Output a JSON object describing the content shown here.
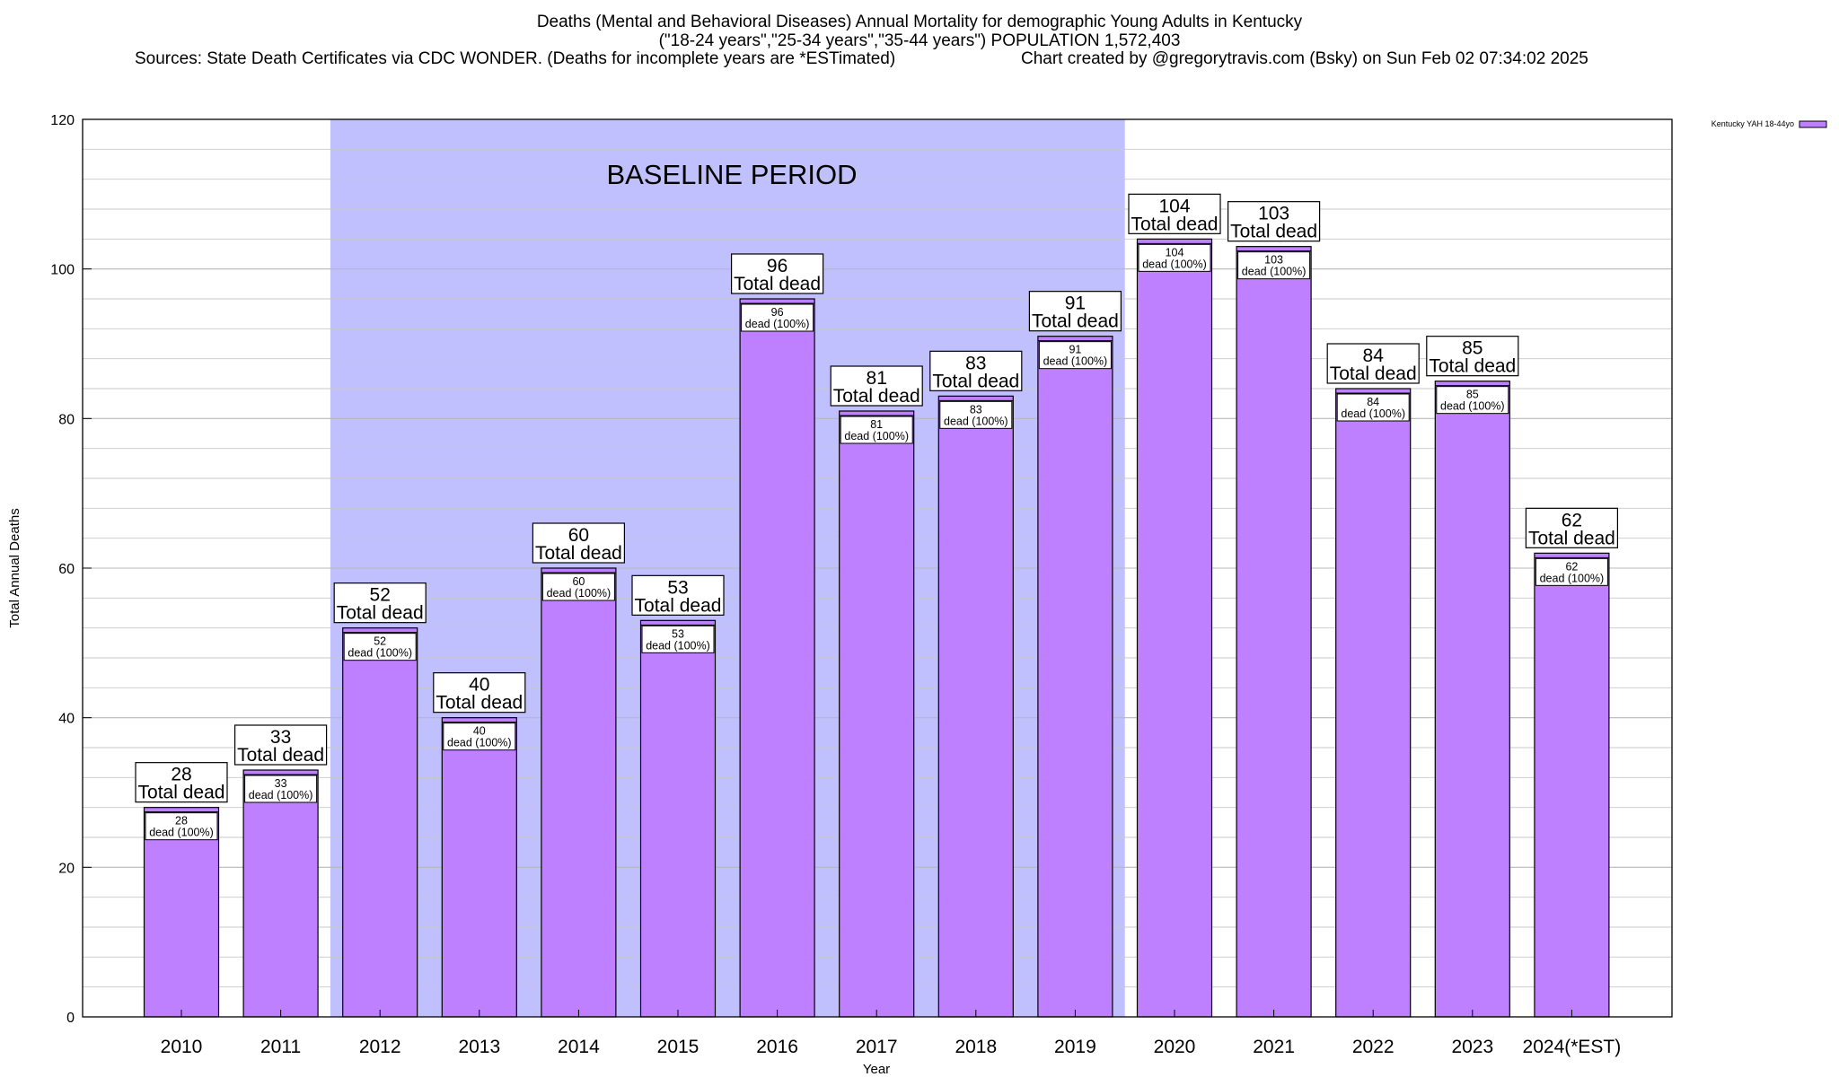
{
  "header": {
    "line1": "Deaths (Mental and Behavioral Diseases) Annual Mortality for demographic Young Adults in Kentucky",
    "line2": "(\"18-24 years\",\"25-34 years\",\"35-44 years\") POPULATION 1,572,403",
    "line3_left": "Sources: State Death Certificates via CDC WONDER. (Deaths for incomplete years are *ESTimated)",
    "line3_right": "Chart created by @gregorytravis.com (Bsky) on Sun Feb 02 07:34:02 2025"
  },
  "chart_data": {
    "type": "bar",
    "xlabel": "Year",
    "ylabel": "Total Annual Deaths",
    "ylim": [
      0,
      120
    ],
    "yticks": [
      0,
      20,
      40,
      60,
      80,
      100,
      120
    ],
    "grid": true,
    "categories": [
      "2010",
      "2011",
      "2012",
      "2013",
      "2014",
      "2015",
      "2016",
      "2017",
      "2018",
      "2019",
      "2020",
      "2021",
      "2022",
      "2023",
      "2024(*EST)"
    ],
    "series": [
      {
        "name": "Kentucky YAH 18-44yo",
        "values": [
          28,
          33,
          52,
          40,
          60,
          53,
          96,
          81,
          83,
          91,
          104,
          103,
          84,
          85,
          62
        ]
      }
    ],
    "top_label_suffix": "Total dead",
    "inner_label_suffix": "dead (100%)",
    "baseline": {
      "label": "BASELINE PERIOD",
      "from": "2012",
      "to": "2019"
    },
    "legend_placement": "top-right",
    "colors": {
      "bar_fill": "#bf80ff",
      "bar_stroke": "#000000",
      "baseline_fill": "#c0c0ff",
      "grid": "#c8c8c8"
    }
  }
}
